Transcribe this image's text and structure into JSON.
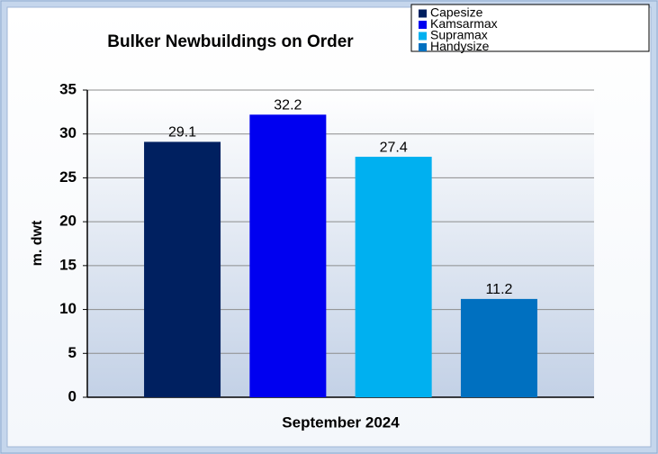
{
  "chart_data": {
    "type": "bar",
    "title": "Bulker Newbuildings on Order",
    "ylabel": "m. dwt",
    "categories": [
      "September 2024"
    ],
    "series": [
      {
        "name": "Capesize",
        "color": "#002060",
        "values": [
          29.1
        ]
      },
      {
        "name": "Kamsarmax",
        "color": "#0000f0",
        "values": [
          32.2
        ]
      },
      {
        "name": "Supramax",
        "color": "#00b0f0",
        "values": [
          27.4
        ]
      },
      {
        "name": "Handysize",
        "color": "#0070c0",
        "values": [
          11.2
        ]
      }
    ],
    "ylim": [
      0,
      35
    ],
    "yticks": [
      0,
      5,
      10,
      15,
      20,
      25,
      30,
      35
    ],
    "grid": true,
    "legend": "upper right"
  }
}
